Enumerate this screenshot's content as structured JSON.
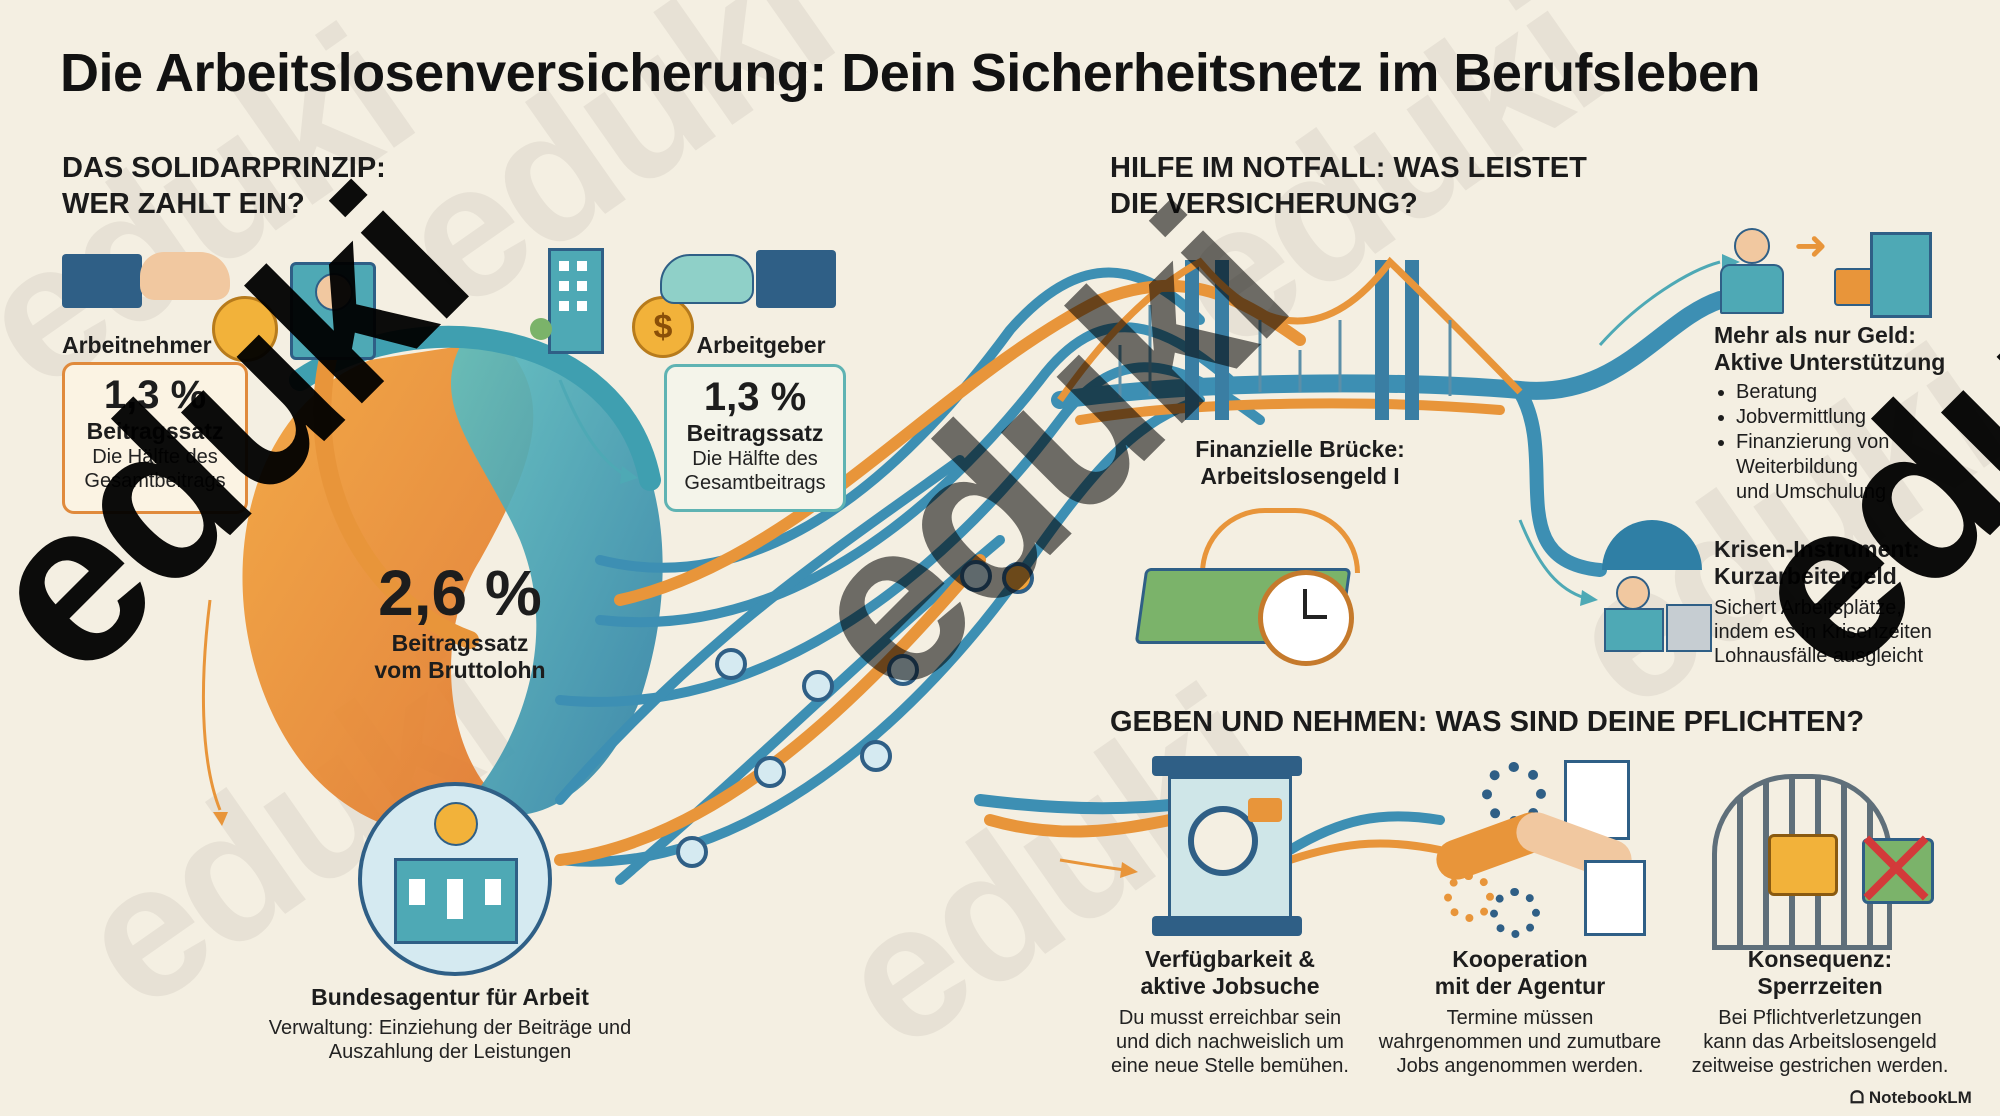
{
  "title": "Die Arbeitslosenversicherung: Dein Sicherheitsnetz im Berufsleben",
  "solidar": {
    "heading_line1": "DAS SOLIDARPRINZIP:",
    "heading_line2": "WER ZAHLT EIN?",
    "employee": {
      "label": "Arbeitnehmer",
      "pct": "1,3 %",
      "rate_label": "Beitragssatz",
      "desc_line1": "Die Hälfte des",
      "desc_line2": "Gesamtbeitrags"
    },
    "employer": {
      "label": "Arbeitgeber",
      "pct": "1,3 %",
      "rate_label": "Beitragssatz",
      "desc_line1": "Die Hälfte des",
      "desc_line2": "Gesamtbeitrags"
    },
    "total": {
      "pct": "2,6 %",
      "line1": "Beitragssatz",
      "line2": "vom Bruttolohn"
    },
    "agency": {
      "name": "Bundesagentur für Arbeit",
      "desc_line1": "Verwaltung: Einziehung der Beiträge und",
      "desc_line2": "Auszahlung der Leistungen"
    }
  },
  "help": {
    "heading_line1": "HILFE IM NOTFALL: WAS LEISTET",
    "heading_line2": "DIE VERSICHERUNG?",
    "bridge": {
      "line1": "Finanzielle Brücke:",
      "line2": "Arbeitslosengeld I"
    },
    "support": {
      "line1": "Mehr als nur Geld:",
      "line2": "Aktive Unterstützung",
      "items": [
        "Beratung",
        "Jobvermittlung",
        "Finanzierung von",
        "Weiterbildung",
        "und Umschulung"
      ]
    },
    "kurzarbeit": {
      "line1": "Krisen-Instrument:",
      "line2": "Kurzarbeitergeld",
      "desc_line1": "Sichert Arbeitsplätze,",
      "desc_line2": "indem es in Krisenzeiten",
      "desc_line3": "Lohnausfälle ausgleicht"
    }
  },
  "duties": {
    "heading": "GEBEN UND NEHMEN: WAS SIND DEINE PFLICHTEN?",
    "items": [
      {
        "title_line1": "Verfügbarkeit &",
        "title_line2": "aktive Jobsuche",
        "desc_line1": "Du musst erreichbar sein",
        "desc_line2": "und dich nachweislich um",
        "desc_line3": "eine neue Stelle bemühen."
      },
      {
        "title_line1": "Kooperation",
        "title_line2": "mit der Agentur",
        "desc_line1": "Termine müssen",
        "desc_line2": "wahrgenommen und zumutbare",
        "desc_line3": "Jobs angenommen werden."
      },
      {
        "title_line1": "Konsequenz:",
        "title_line2": "Sperrzeiten",
        "desc_line1": "Bei Pflichtverletzungen",
        "desc_line2": "kann das Arbeitslosengeld",
        "desc_line3": "zeitweise gestrichen werden."
      }
    ]
  },
  "watermark": {
    "text": "eduki"
  },
  "brand": {
    "notebooklm": "NotebookLM"
  },
  "colors": {
    "orange": "#e8953a",
    "teal": "#4ea9b5",
    "navy": "#2f5f86",
    "background": "#f4efe2"
  },
  "icons": [
    "hand-coin-icon",
    "worker-icon",
    "building-icon",
    "dollar-coin-icon",
    "government-building-icon",
    "eagle-icon",
    "bridge-icon",
    "money-stack-icon",
    "clock-icon",
    "career-arrow-icon",
    "umbrella-worker-icon",
    "magnifier-person-icon",
    "handshake-icon",
    "gear-icon",
    "document-icon",
    "locked-gate-icon",
    "wallet-cross-icon"
  ]
}
